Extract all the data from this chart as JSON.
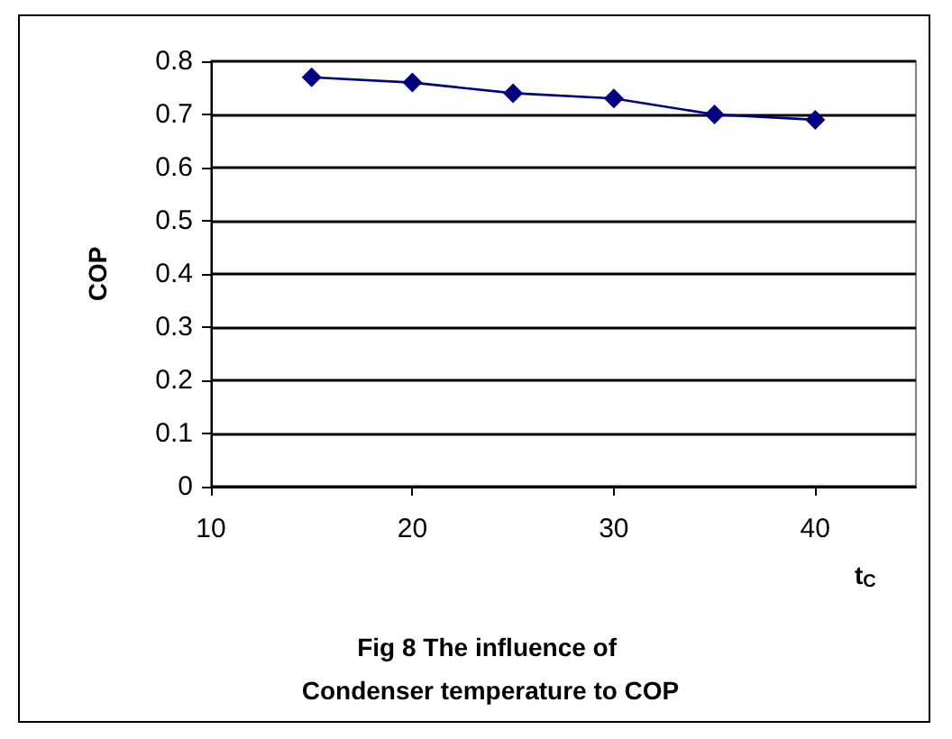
{
  "chart_data": {
    "type": "line",
    "title": "Fig 8 The influence of Condenser temperature to COP",
    "xlabel": "t$_{C}$",
    "ylabel": "COP",
    "x": [
      15,
      20,
      25,
      30,
      35,
      40
    ],
    "series": [
      {
        "color": "#000080",
        "values": [
          0.77,
          0.76,
          0.74,
          0.73,
          0.7,
          0.69
        ]
      }
    ],
    "xlim": [
      10,
      45
    ],
    "xticks": [
      10,
      20,
      30,
      40
    ],
    "ylim": [
      0,
      0.8
    ],
    "yticks": [
      0,
      0.1,
      0.2,
      0.3,
      0.4,
      0.5,
      0.6,
      0.7,
      0.8
    ],
    "grid": "y",
    "marker": "diamond",
    "line_style": "solid"
  }
}
